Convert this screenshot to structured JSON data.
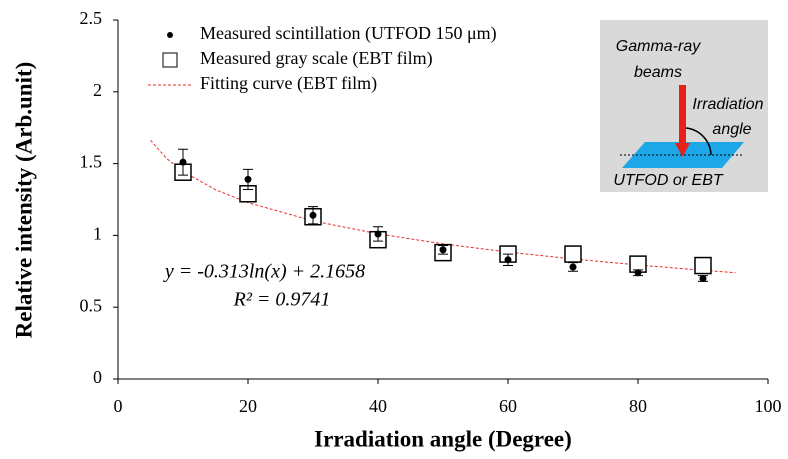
{
  "chart_data": {
    "type": "scatter",
    "x_label": "Irradiation angle (Degree)",
    "y_label": "Relative intensity (Arb.unit)",
    "xlim": [
      0,
      100
    ],
    "xticks": [
      0,
      20,
      40,
      60,
      80,
      100
    ],
    "ylim": [
      0,
      2.5
    ],
    "yticks": [
      0,
      0.5,
      1,
      1.5,
      2,
      2.5
    ],
    "legend": "top-left",
    "series": [
      {
        "name": "Measured scintillation (UTFOD 150 μm)",
        "color": "#000000",
        "marker": "dot",
        "x": [
          10,
          20,
          30,
          40,
          50,
          60,
          70,
          80,
          90
        ],
        "values": [
          1.51,
          1.39,
          1.14,
          1.01,
          0.9,
          0.83,
          0.78,
          0.74,
          0.7
        ],
        "errors": [
          0.09,
          0.07,
          0.06,
          0.05,
          0.03,
          0.04,
          0.03,
          0.02,
          0.02
        ]
      },
      {
        "name": "Measured gray scale (EBT film)",
        "color": "#000000",
        "marker": "square",
        "x": [
          10,
          20,
          30,
          40,
          50,
          60,
          70,
          80,
          90
        ],
        "values": [
          1.44,
          1.29,
          1.13,
          0.97,
          0.88,
          0.87,
          0.87,
          0.8,
          0.79
        ]
      },
      {
        "name": "Fitting curve (EBT film)",
        "color": "#e8302a",
        "marker": "dashed-line",
        "x": [
          5,
          7.5,
          10,
          15,
          20,
          30,
          40,
          50,
          60,
          70,
          80,
          90,
          95
        ],
        "values": [
          1.662,
          1.535,
          1.445,
          1.318,
          1.228,
          1.101,
          1.011,
          0.941,
          0.884,
          0.836,
          0.794,
          0.757,
          0.74
        ]
      }
    ],
    "annotations": [
      "y = -0.313ln(x) + 2.1658",
      "R² = 0.9741"
    ],
    "inset": {
      "beam_label": [
        "Gamma-ray",
        "beams"
      ],
      "angle_label": [
        "Irradiation",
        "angle"
      ],
      "target_label": "UTFOD or EBT"
    }
  }
}
